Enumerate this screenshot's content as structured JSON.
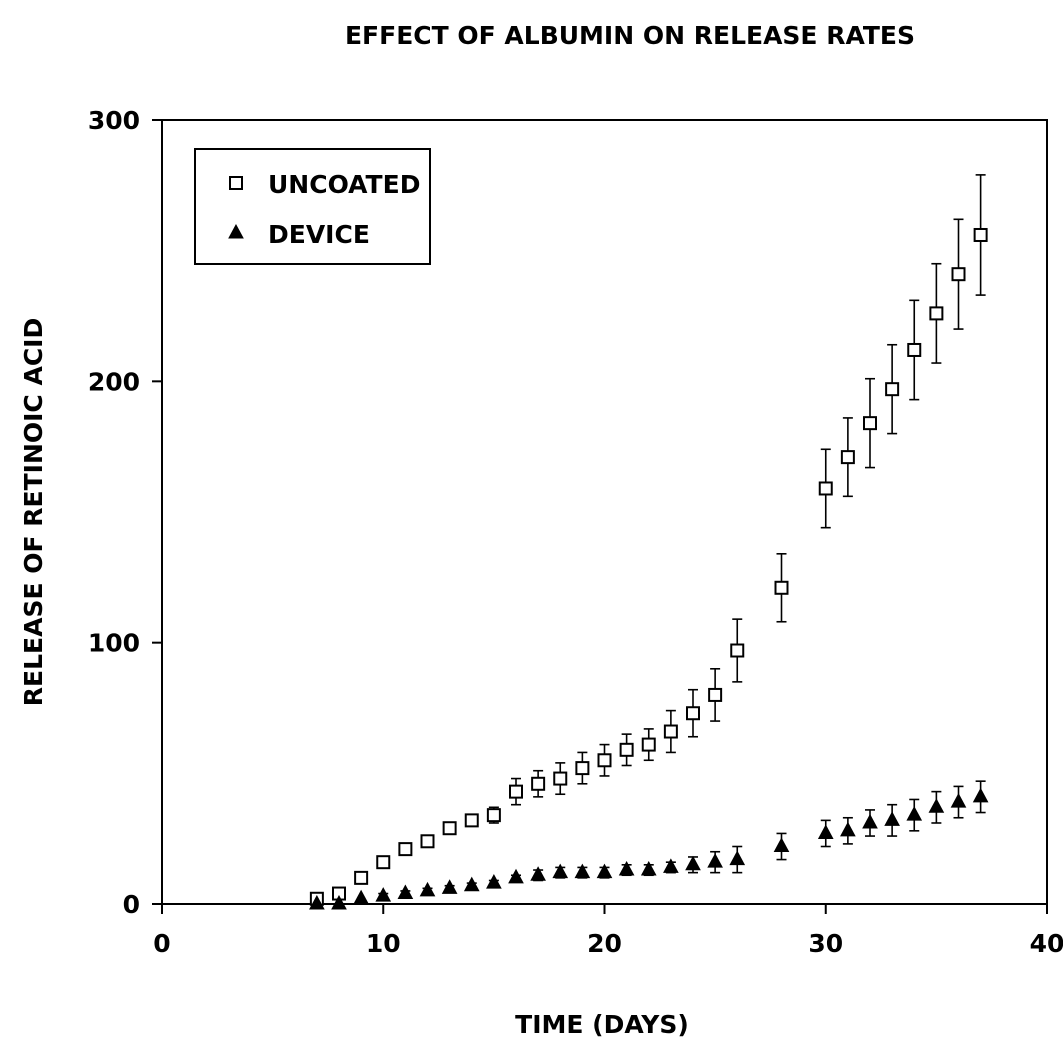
{
  "chart_data": {
    "type": "scatter",
    "title": "EFFECT OF ALBUMIN ON RELEASE RATES",
    "xlabel": "TIME (DAYS)",
    "ylabel": "RELEASE OF RETINOIC ACID",
    "xlim": [
      0,
      40
    ],
    "ylim": [
      0,
      300
    ],
    "xticks": [
      0,
      10,
      20,
      30,
      40
    ],
    "yticks": [
      0,
      100,
      200,
      300
    ],
    "grid": false,
    "legend_position": "top-left",
    "error_bars": true,
    "series": [
      {
        "name": "UNCOATED",
        "marker": "open-square",
        "x": [
          7,
          8,
          9,
          10,
          11,
          12,
          13,
          14,
          15,
          16,
          17,
          18,
          19,
          20,
          21,
          22,
          23,
          24,
          25,
          26,
          28,
          30,
          31,
          32,
          33,
          34,
          35,
          36,
          37
        ],
        "y": [
          2,
          4,
          10,
          16,
          21,
          24,
          29,
          32,
          34,
          43,
          46,
          48,
          52,
          55,
          59,
          61,
          66,
          73,
          80,
          97,
          121,
          159,
          171,
          184,
          197,
          212,
          226,
          241,
          256
        ],
        "err": [
          0,
          0,
          0,
          1,
          1,
          1,
          1,
          1,
          3,
          5,
          5,
          6,
          6,
          6,
          6,
          6,
          8,
          9,
          10,
          12,
          13,
          15,
          15,
          17,
          17,
          19,
          19,
          21,
          23
        ]
      },
      {
        "name": "DEVICE",
        "marker": "filled-triangle",
        "x": [
          7,
          8,
          9,
          10,
          11,
          12,
          13,
          14,
          15,
          16,
          17,
          18,
          19,
          20,
          21,
          22,
          23,
          24,
          25,
          26,
          28,
          30,
          31,
          32,
          33,
          34,
          35,
          36,
          37
        ],
        "y": [
          0,
          0,
          2,
          3,
          4,
          5,
          6,
          7,
          8,
          10,
          11,
          12,
          12,
          12,
          13,
          13,
          14,
          15,
          16,
          17,
          22,
          27,
          28,
          31,
          32,
          34,
          37,
          39,
          41
        ],
        "err": [
          0,
          0,
          0,
          1,
          1,
          1,
          1,
          1,
          1,
          1,
          2,
          2,
          2,
          2,
          2,
          2,
          2,
          3,
          4,
          5,
          5,
          5,
          5,
          5,
          6,
          6,
          6,
          6,
          6
        ]
      }
    ]
  }
}
